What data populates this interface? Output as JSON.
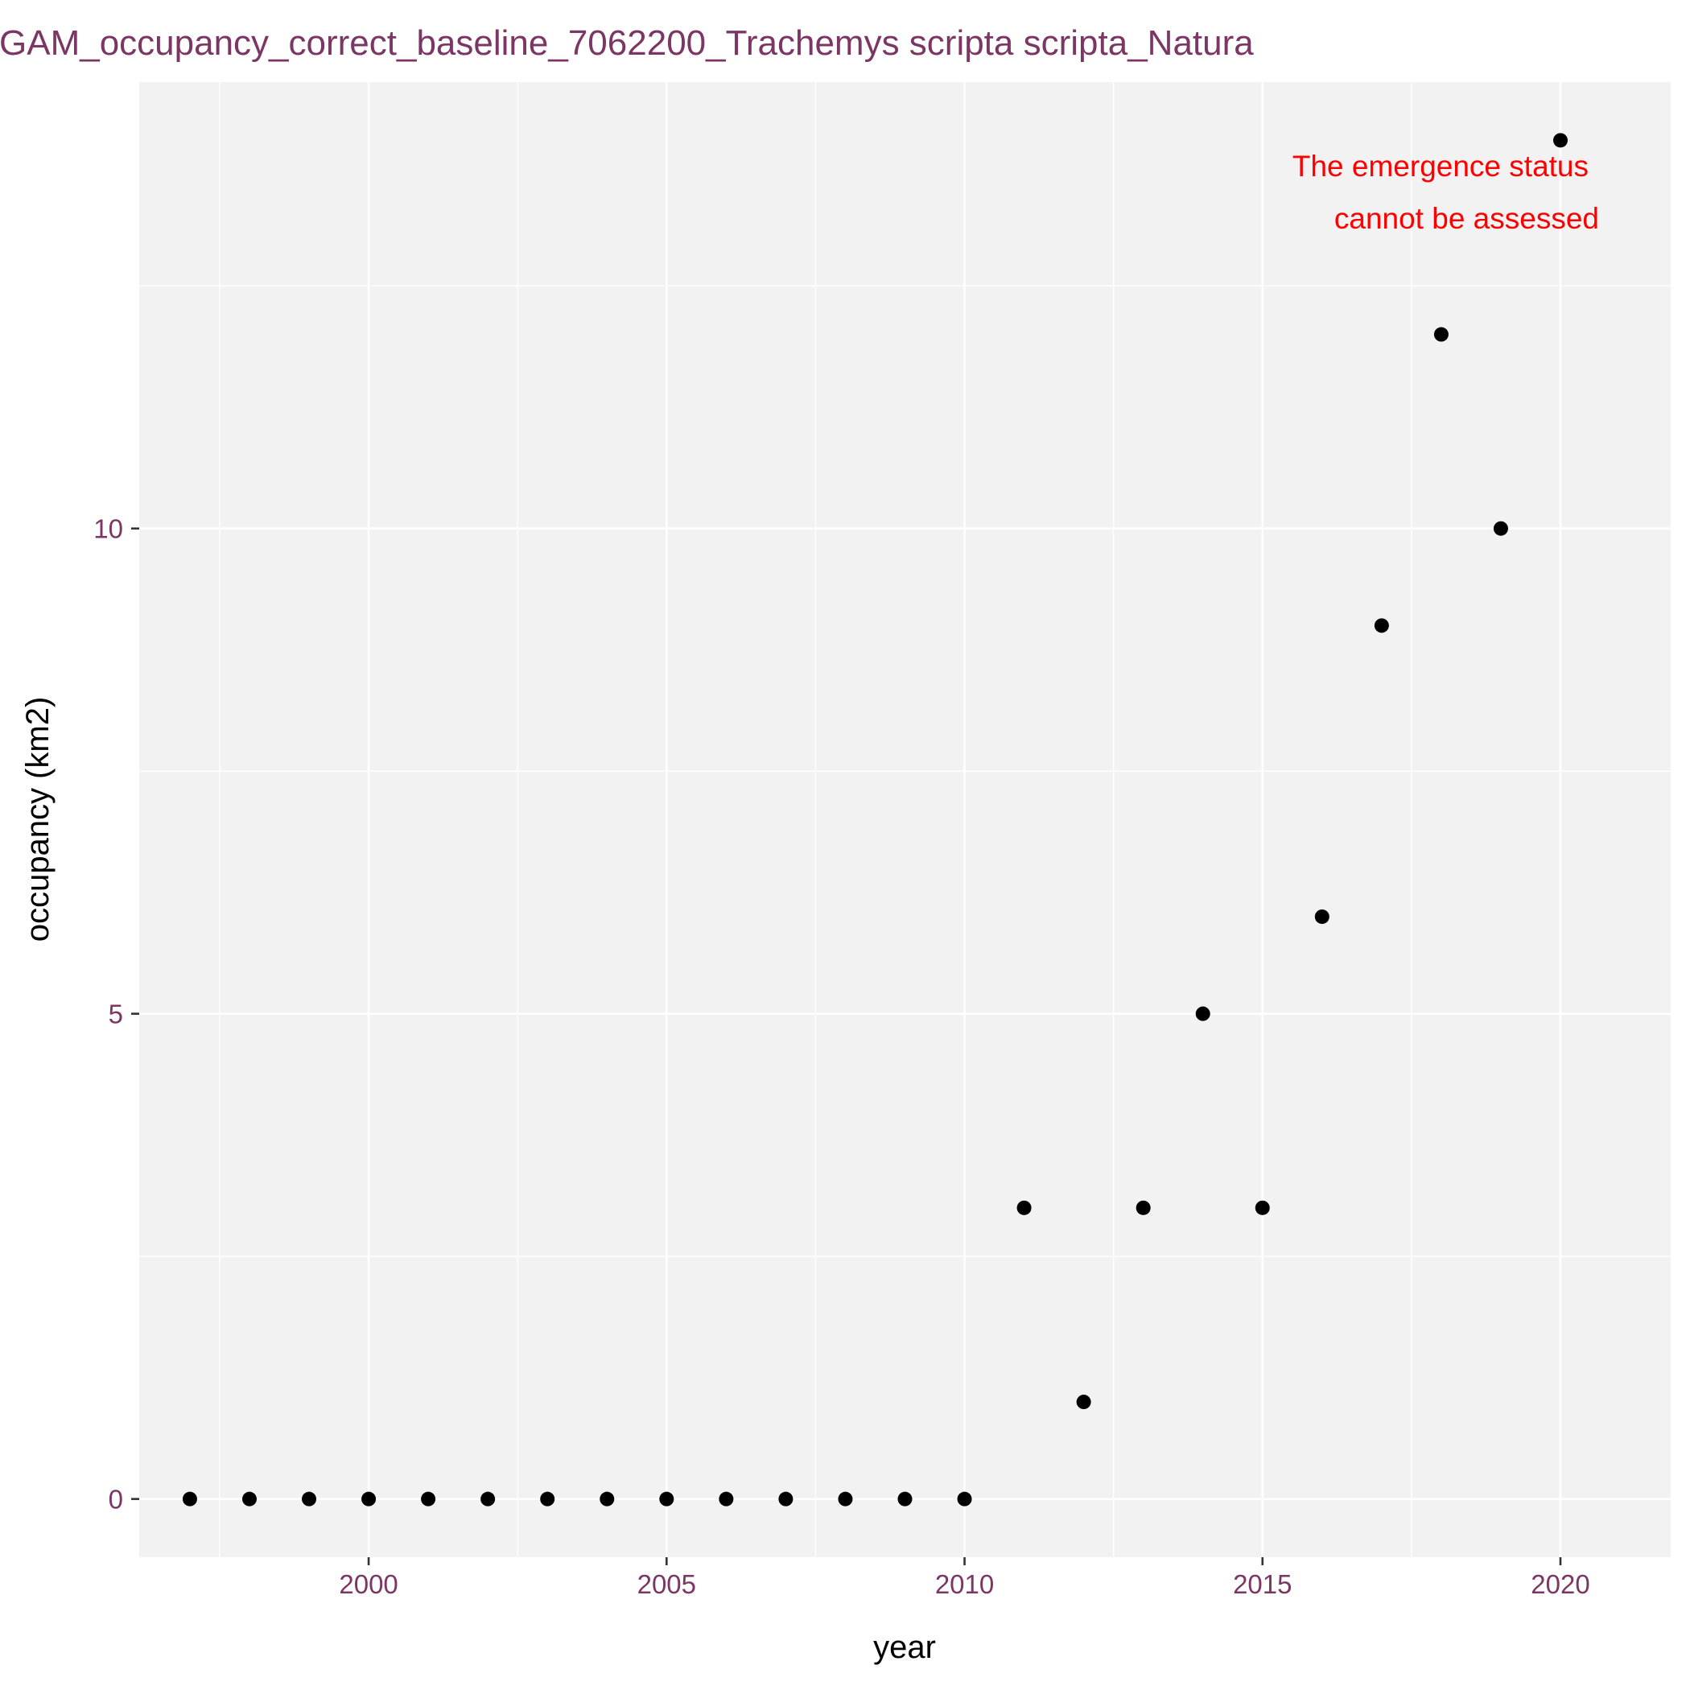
{
  "chart_data": {
    "type": "scatter",
    "title": "GAM_occupancy_correct_baseline_7062200_Trachemys scripta scripta_Natura",
    "xlabel": "year",
    "ylabel": "occupancy (km2)",
    "annotation": [
      "The emergence status",
      "cannot be assessed"
    ],
    "x_ticks": [
      2000,
      2005,
      2010,
      2015,
      2020
    ],
    "y_ticks": [
      0,
      5,
      10
    ],
    "xlim": [
      1996.15,
      2021.85
    ],
    "ylim": [
      -0.6,
      14.6
    ],
    "grid": true,
    "points": [
      {
        "x": 1997,
        "y": 0
      },
      {
        "x": 1998,
        "y": 0
      },
      {
        "x": 1999,
        "y": 0
      },
      {
        "x": 2000,
        "y": 0
      },
      {
        "x": 2001,
        "y": 0
      },
      {
        "x": 2002,
        "y": 0
      },
      {
        "x": 2003,
        "y": 0
      },
      {
        "x": 2004,
        "y": 0
      },
      {
        "x": 2005,
        "y": 0
      },
      {
        "x": 2006,
        "y": 0
      },
      {
        "x": 2007,
        "y": 0
      },
      {
        "x": 2008,
        "y": 0
      },
      {
        "x": 2009,
        "y": 0
      },
      {
        "x": 2010,
        "y": 0
      },
      {
        "x": 2011,
        "y": 3
      },
      {
        "x": 2012,
        "y": 1
      },
      {
        "x": 2013,
        "y": 3
      },
      {
        "x": 2014,
        "y": 5
      },
      {
        "x": 2015,
        "y": 3
      },
      {
        "x": 2016,
        "y": 6
      },
      {
        "x": 2017,
        "y": 9
      },
      {
        "x": 2018,
        "y": 12
      },
      {
        "x": 2019,
        "y": 10
      },
      {
        "x": 2020,
        "y": 14
      }
    ],
    "colors": {
      "panel": "#f2f2f2",
      "grid": "#ffffff",
      "point": "#000000",
      "title": "#7b3664",
      "tick_label": "#7b3664",
      "axis_title": "#000000",
      "annotation": "#ff0000"
    }
  }
}
